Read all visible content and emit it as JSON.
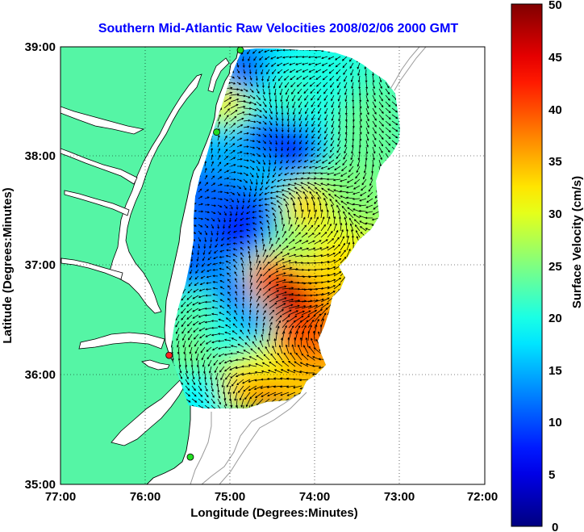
{
  "title": "Southern Mid-Atlantic Raw Velocities 2008/02/06 2000 GMT",
  "x_axis": {
    "label": "Longitude (Degrees:Minutes)",
    "ticks": [
      "77:00",
      "76:00",
      "75:00",
      "74:00",
      "73:00",
      "72:00"
    ]
  },
  "y_axis": {
    "label": "Latitude (Degrees:Minutes)",
    "ticks": [
      "39:00",
      "38:00",
      "37:00",
      "36:00",
      "35:00"
    ]
  },
  "colorbar": {
    "label": "Surface Velocity (cm/s)",
    "ticks": [
      "50",
      "45",
      "40",
      "35",
      "30",
      "25",
      "20",
      "15",
      "10",
      "5",
      "0"
    ],
    "range": [
      0,
      50
    ],
    "colormap": "jet"
  },
  "colors": {
    "land": "#55f5a5",
    "water": "#ffffff",
    "title": "#0000ff",
    "arrows": "#000000",
    "bathymetry": "#999999",
    "site_active": "#22dd22",
    "site_inactive": "#ff2222"
  },
  "map": {
    "lon_range": [
      -77.0,
      -72.0
    ],
    "lat_range": [
      35.0,
      39.0
    ],
    "grid": "dotted",
    "type": "current field with velocity vectors",
    "sites": [
      {
        "lon": -74.88,
        "lat": 38.97,
        "status": "active"
      },
      {
        "lon": -75.16,
        "lat": 38.22,
        "status": "active"
      },
      {
        "lon": -75.72,
        "lat": 36.18,
        "status": "inactive"
      },
      {
        "lon": -75.47,
        "lat": 35.25,
        "status": "active"
      }
    ],
    "speed_field": [
      {
        "lon": -74.4,
        "lat": 36.7,
        "speed": 49
      },
      {
        "lon": -74.55,
        "lat": 36.85,
        "speed": 43
      },
      {
        "lon": -74.25,
        "lat": 36.4,
        "speed": 40
      },
      {
        "lon": -74.6,
        "lat": 35.9,
        "speed": 38
      },
      {
        "lon": -74.9,
        "lat": 35.9,
        "speed": 34
      },
      {
        "lon": -74.1,
        "lat": 37.55,
        "speed": 34
      },
      {
        "lon": -73.85,
        "lat": 37.0,
        "speed": 33
      },
      {
        "lon": -75.0,
        "lat": 38.55,
        "speed": 33
      },
      {
        "lon": -73.7,
        "lat": 37.7,
        "speed": 25
      },
      {
        "lon": -73.5,
        "lat": 38.3,
        "speed": 24
      },
      {
        "lon": -74.3,
        "lat": 38.5,
        "speed": 22
      },
      {
        "lon": -73.9,
        "lat": 38.55,
        "speed": 20
      },
      {
        "lon": -75.4,
        "lat": 36.6,
        "speed": 23
      },
      {
        "lon": -75.35,
        "lat": 36.2,
        "speed": 25
      },
      {
        "lon": -75.1,
        "lat": 36.3,
        "speed": 20
      },
      {
        "lon": -74.6,
        "lat": 36.0,
        "speed": 30
      },
      {
        "lon": -74.9,
        "lat": 38.7,
        "speed": 9
      },
      {
        "lon": -74.5,
        "lat": 38.15,
        "speed": 9
      },
      {
        "lon": -74.3,
        "lat": 38.05,
        "speed": 7
      },
      {
        "lon": -75.3,
        "lat": 37.7,
        "speed": 11
      },
      {
        "lon": -74.85,
        "lat": 37.3,
        "speed": 7
      },
      {
        "lon": -74.75,
        "lat": 37.5,
        "speed": 9
      },
      {
        "lon": -75.45,
        "lat": 37.0,
        "speed": 11
      },
      {
        "lon": -74.95,
        "lat": 36.75,
        "speed": 11
      },
      {
        "lon": -74.7,
        "lat": 36.5,
        "speed": 13
      },
      {
        "lon": -75.2,
        "lat": 38.0,
        "speed": 15
      },
      {
        "lon": -74.6,
        "lat": 37.85,
        "speed": 16
      },
      {
        "lon": -74.2,
        "lat": 37.2,
        "speed": 26
      },
      {
        "lon": -75.3,
        "lat": 35.85,
        "speed": 18
      }
    ]
  }
}
